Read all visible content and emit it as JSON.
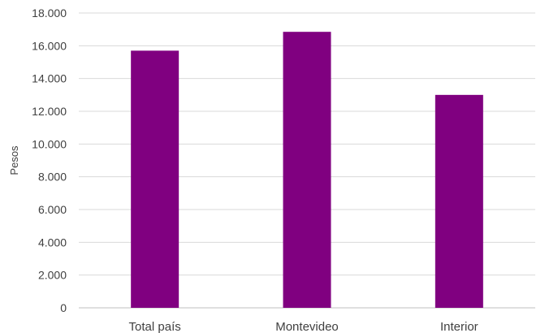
{
  "chart_data": {
    "type": "bar",
    "title": "",
    "xlabel": "",
    "ylabel": "Pesos",
    "categories": [
      "Total país",
      "Montevideo",
      "Interior"
    ],
    "series": [
      {
        "values": [
          15700,
          16850,
          13000
        ],
        "color": "#800080"
      }
    ],
    "ylim": [
      0,
      18000
    ],
    "yticks": [
      0,
      2000,
      4000,
      6000,
      8000,
      10000,
      12000,
      14000,
      16000,
      18000
    ],
    "ytick_labels": [
      "0",
      "2.000",
      "4.000",
      "6.000",
      "8.000",
      "10.000",
      "12.000",
      "14.000",
      "16.000",
      "18.000"
    ],
    "grid": true,
    "legend": "none"
  }
}
